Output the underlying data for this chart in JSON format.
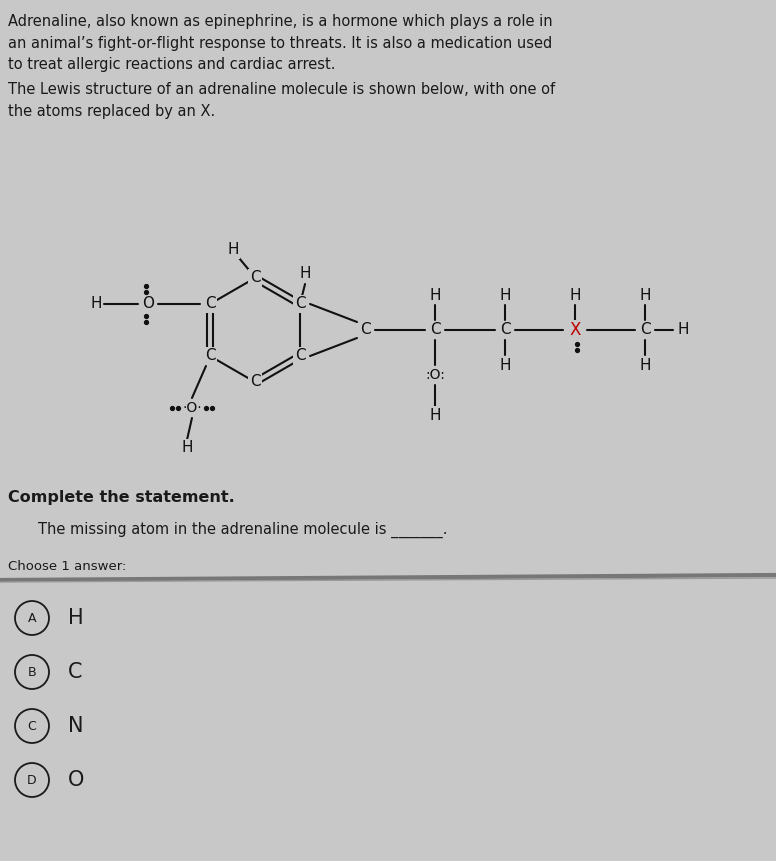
{
  "bg_color": "#c8c8c8",
  "text_color": "#1a1a1a",
  "paragraph1": "Adrenaline, also known as epinephrine, is a hormone which plays a role in\nan animal’s fight-or-flight response to threats. It is also a medication used\nto treat allergic reactions and cardiac arrest.",
  "paragraph2": "The Lewis structure of an adrenaline molecule is shown below, with one of\nthe atoms replaced by an X.",
  "complete_stmt": "Complete the statement.",
  "statement": "The missing atom in the adrenaline molecule is _______.",
  "choose": "Choose 1 answer:",
  "choices_labels": [
    "A",
    "B",
    "C",
    "D"
  ],
  "choices_texts": [
    "H",
    "C",
    "N",
    "O"
  ],
  "x_color": "#bb0000",
  "molecule_color": "#111111"
}
